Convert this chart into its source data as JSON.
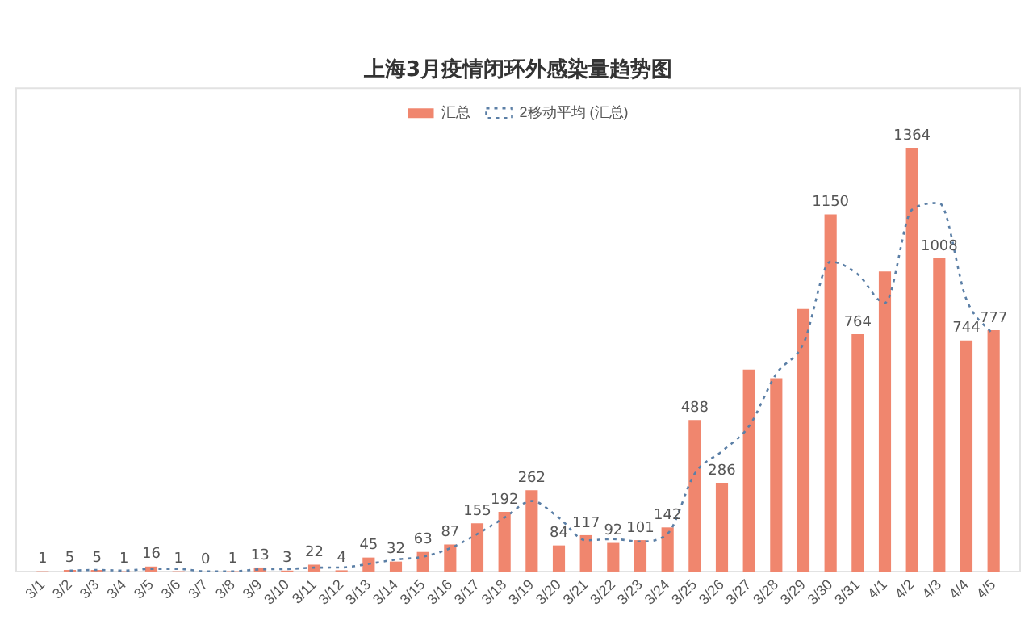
{
  "chart_data": {
    "type": "bar",
    "title": "上海3月疫情闭环外感染量趋势图",
    "categories": [
      "3/1",
      "3/2",
      "3/3",
      "3/4",
      "3/5",
      "3/6",
      "3/7",
      "3/8",
      "3/9",
      "3/10",
      "3/11",
      "3/12",
      "3/13",
      "3/14",
      "3/15",
      "3/16",
      "3/17",
      "3/18",
      "3/19",
      "3/20",
      "3/21",
      "3/22",
      "3/23",
      "3/24",
      "3/25",
      "3/26",
      "3/27",
      "3/28",
      "3/29",
      "3/30",
      "3/31",
      "4/1",
      "4/2",
      "4/3",
      "4/4",
      "4/5"
    ],
    "series": [
      {
        "name": "汇总",
        "color": "#f0866e",
        "values": [
          1,
          5,
          5,
          1,
          16,
          1,
          0,
          1,
          13,
          3,
          22,
          4,
          45,
          32,
          63,
          87,
          155,
          192,
          262,
          84,
          117,
          92,
          101,
          142,
          488,
          286,
          650,
          622,
          845,
          1150,
          764,
          966,
          1364,
          1008,
          744,
          777
        ],
        "value_labels": [
          "1",
          "5",
          "5",
          "1",
          "16",
          "1",
          "0",
          "1",
          "13",
          "3",
          "22",
          "4",
          "45",
          "32",
          "63",
          "87",
          "155",
          "192",
          "262",
          "84",
          "117",
          "92",
          "101",
          "142",
          "488",
          "286",
          null,
          null,
          null,
          "1150",
          "764",
          null,
          "1364",
          "1008",
          "744",
          "777"
        ]
      },
      {
        "name": "2移动平均 (汇总)",
        "type": "line",
        "color": "#5b7fa6",
        "line_style": "dotted",
        "marker": "none",
        "values": [
          null,
          3,
          5,
          3,
          8.5,
          8.5,
          0.5,
          0.5,
          7,
          8,
          12.5,
          13,
          24.5,
          38.5,
          47.5,
          75,
          121,
          173.5,
          227,
          173,
          100.5,
          104.5,
          96.5,
          121.5,
          315,
          387,
          468,
          636,
          733.5,
          997.5,
          957,
          865,
          1165,
          1186,
          876,
          760.5
        ]
      }
    ],
    "legend": "top",
    "tick_labels": "x"
  }
}
